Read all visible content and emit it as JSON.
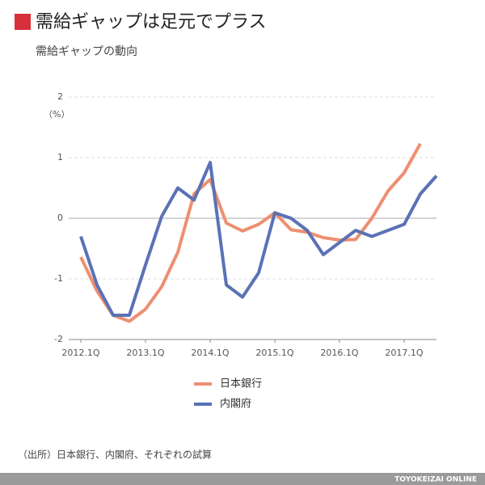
{
  "chart_data": {
    "type": "line",
    "title": "需給ギャップは足元でプラス",
    "subtitle": "需給ギャップの動向",
    "y_unit": "（%）",
    "source": "（出所）日本銀行、内閣府、それぞれの試算",
    "footer": "TOYOKEIZAI ONLINE",
    "categories": [
      "2012.1Q",
      null,
      null,
      null,
      "2013.1Q",
      null,
      null,
      null,
      "2014.1Q",
      null,
      null,
      null,
      "2015.1Q",
      null,
      null,
      null,
      "2016.1Q",
      null,
      null,
      null,
      "2017.1Q",
      null,
      null
    ],
    "series": [
      {
        "name": "日本銀行",
        "color": "#ee8f71",
        "values": [
          -0.64,
          -1.2,
          -1.6,
          -1.7,
          -1.5,
          -1.13,
          -0.56,
          0.4,
          0.64,
          -0.08,
          -0.21,
          -0.1,
          0.09,
          -0.19,
          -0.23,
          -0.32,
          -0.36,
          -0.35,
          0,
          0.45,
          0.75,
          1.23,
          null
        ]
      },
      {
        "name": "内閣府",
        "color": "#5a72b5",
        "values": [
          -0.3,
          -1.1,
          -1.6,
          -1.6,
          -0.77,
          0.03,
          0.5,
          0.3,
          0.92,
          -1.1,
          -1.3,
          -0.9,
          0.09,
          0,
          -0.2,
          -0.6,
          -0.4,
          -0.2,
          -0.3,
          -0.2,
          -0.1,
          0.4,
          0.7
        ]
      }
    ],
    "ylim": [
      -2,
      2
    ],
    "yticks": [
      -2,
      -1,
      0,
      1,
      2
    ],
    "grid": true
  }
}
